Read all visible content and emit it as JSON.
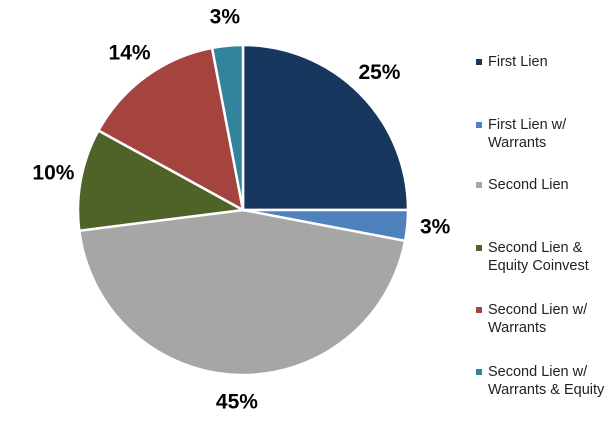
{
  "chart_data": {
    "type": "pie",
    "categories": [
      "First Lien",
      "First Lien w/ Warrants",
      "Second Lien",
      "Second Lien & Equity Coinvest",
      "Second Lien w/ Warrants",
      "Second Lien w/ Warrants & Equity"
    ],
    "values": [
      25,
      3,
      45,
      10,
      14,
      3
    ],
    "value_labels": [
      "25%",
      "3%",
      "45%",
      "10%",
      "14%",
      "3%"
    ],
    "colors": [
      "#17375e",
      "#4f81bd",
      "#a6a6a6",
      "#4f6228",
      "#a5433f",
      "#31849b"
    ],
    "legend": "right"
  }
}
